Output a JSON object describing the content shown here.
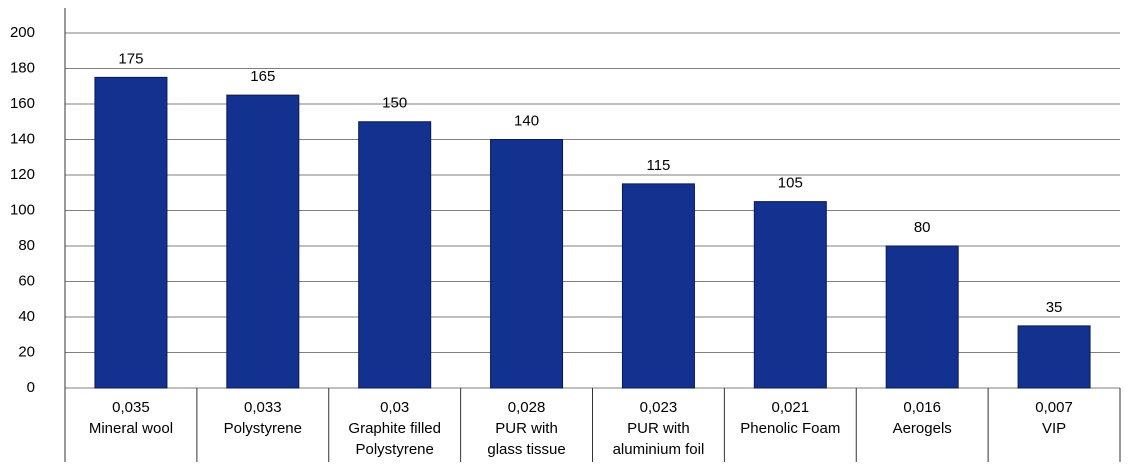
{
  "chart_data": {
    "type": "bar",
    "categories": [
      [
        "0,035",
        "Mineral wool"
      ],
      [
        "0,033",
        "Polystyrene"
      ],
      [
        "0,03",
        "Graphite filled",
        "Polystyrene"
      ],
      [
        "0,028",
        "PUR with",
        "glass tissue"
      ],
      [
        "0,023",
        "PUR with",
        "aluminium foil"
      ],
      [
        "0,021",
        "Phenolic Foam"
      ],
      [
        "0,016",
        "Aerogels"
      ],
      [
        "0,007",
        "VIP"
      ]
    ],
    "values": [
      175,
      165,
      150,
      140,
      115,
      105,
      80,
      35
    ],
    "color": "#13318f",
    "ylim": [
      0,
      200
    ],
    "yticks": [
      0,
      20,
      40,
      60,
      80,
      100,
      120,
      140,
      160,
      180,
      200
    ],
    "grid": true
  }
}
